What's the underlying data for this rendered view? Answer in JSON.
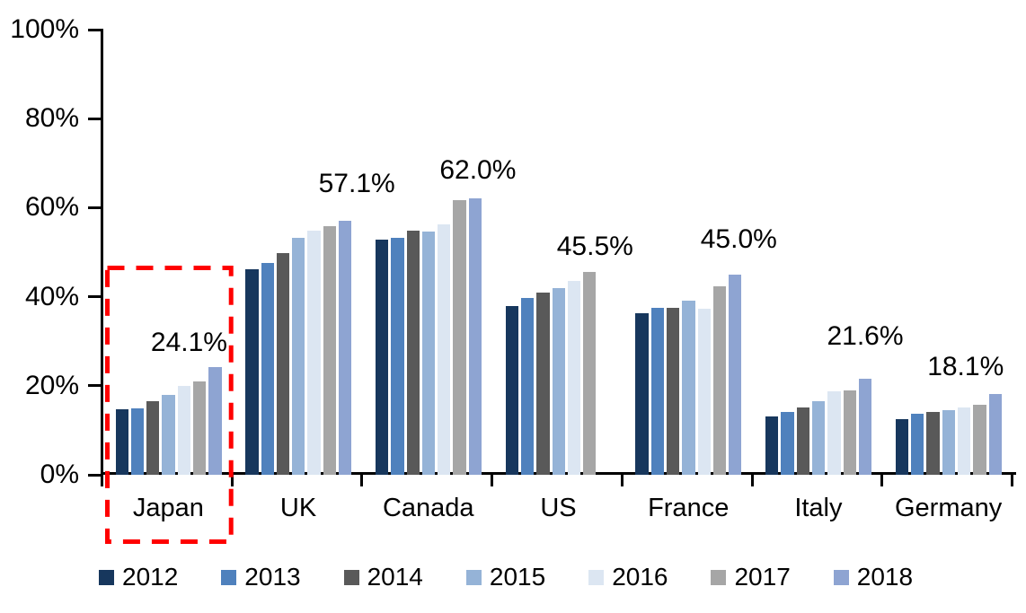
{
  "chart_data": {
    "type": "bar",
    "title": "",
    "xlabel": "",
    "ylabel": "",
    "categories": [
      "Japan",
      "UK",
      "Canada",
      "US",
      "France",
      "Italy",
      "Germany"
    ],
    "series": [
      {
        "name": "2012",
        "color": "#17375D",
        "values": [
          14.8,
          46.2,
          52.9,
          38.0,
          36.3,
          13.2,
          12.4
        ]
      },
      {
        "name": "2013",
        "color": "#4F81BD",
        "values": [
          15.0,
          47.5,
          53.3,
          39.8,
          37.5,
          14.1,
          13.7
        ]
      },
      {
        "name": "2014",
        "color": "#595959",
        "values": [
          16.5,
          49.7,
          54.8,
          41.0,
          37.5,
          15.1,
          14.2
        ]
      },
      {
        "name": "2015",
        "color": "#95B3D7",
        "values": [
          17.9,
          53.2,
          54.6,
          42.0,
          39.2,
          16.6,
          14.6
        ]
      },
      {
        "name": "2016",
        "color": "#DCE6F2",
        "values": [
          19.9,
          54.8,
          56.2,
          43.5,
          37.2,
          18.8,
          15.1
        ]
      },
      {
        "name": "2017",
        "color": "#A6A6A6",
        "values": [
          21.0,
          55.8,
          61.6,
          45.5,
          42.3,
          19.0,
          15.7
        ]
      },
      {
        "name": "2018",
        "color": "#8EA4D2",
        "values": [
          24.1,
          57.1,
          62.0,
          null,
          45.0,
          21.6,
          18.1
        ]
      }
    ],
    "annotations": [
      {
        "category": "Japan",
        "text": "24.1%",
        "value": 24.1
      },
      {
        "category": "UK",
        "text": "57.1%",
        "value": 57.1
      },
      {
        "category": "Canada",
        "text": "62.0%",
        "value": 62.0
      },
      {
        "category": "US",
        "text": "45.5%",
        "value": 45.5
      },
      {
        "category": "France",
        "text": "45.0%",
        "value": 45.0
      },
      {
        "category": "Italy",
        "text": "21.6%",
        "value": 21.6
      },
      {
        "category": "Germany",
        "text": "18.1%",
        "value": 18.1
      }
    ],
    "yticks": [
      "0%",
      "20%",
      "40%",
      "60%",
      "80%",
      "100%"
    ],
    "ylim": [
      0,
      100
    ],
    "grid": false,
    "legend_position": "bottom",
    "highlight": {
      "category": "Japan",
      "style": "red-dashed-box",
      "color": "#FF0000"
    }
  }
}
